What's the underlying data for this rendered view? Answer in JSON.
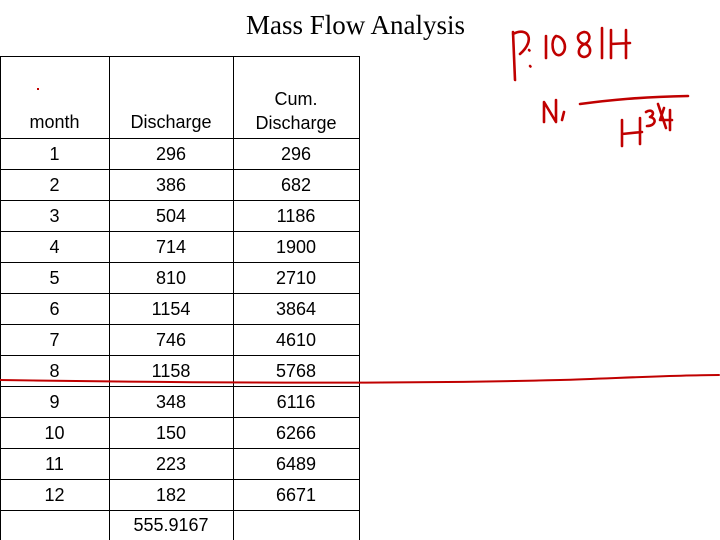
{
  "title": "Mass Flow Analysis",
  "table": {
    "headers": {
      "col1": "month",
      "col2": "Discharge",
      "col3_line1": "Cum.",
      "col3_line2": "Discharge"
    },
    "rows": [
      [
        "1",
        "296",
        "296"
      ],
      [
        "2",
        "386",
        "682"
      ],
      [
        "3",
        "504",
        "1186"
      ],
      [
        "4",
        "714",
        "1900"
      ],
      [
        "5",
        "810",
        "2710"
      ],
      [
        "6",
        "1154",
        "3864"
      ],
      [
        "7",
        "746",
        "4610"
      ],
      [
        "8",
        "1158",
        "5768"
      ],
      [
        "9",
        "348",
        "6116"
      ],
      [
        "10",
        "150",
        "6266"
      ],
      [
        "11",
        "223",
        "6489"
      ],
      [
        "12",
        "182",
        "6671"
      ]
    ],
    "footer": {
      "col2": "555.9167"
    }
  },
  "annotations": {
    "ink_color": "#c00000",
    "line1": "P: 10 8 H",
    "line2": "N, H 3/4"
  }
}
